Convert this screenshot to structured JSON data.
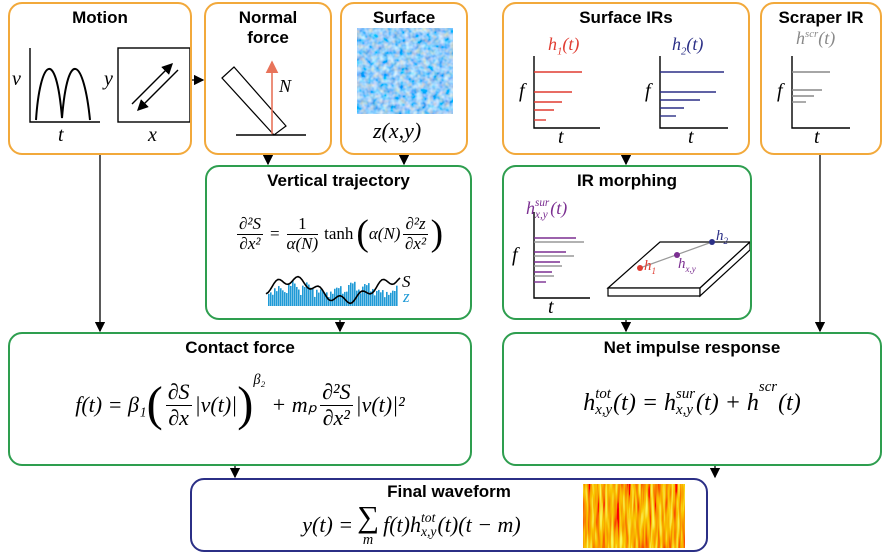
{
  "motion": {
    "title": "Motion",
    "v_label": "v",
    "t_label": "t",
    "y_label": "y",
    "x_label": "x"
  },
  "normal_force": {
    "title": "Normal force",
    "n_label": "N"
  },
  "surface": {
    "title": "Surface",
    "label": "z(x,y)"
  },
  "surface_irs": {
    "title": "Surface IRs",
    "h1": {
      "base": "h",
      "sub": "1",
      "arg": "(t)"
    },
    "h2": {
      "base": "h",
      "sub": "2",
      "arg": "(t)"
    },
    "f_label": "f",
    "t_label": "t"
  },
  "scraper_ir": {
    "title": "Scraper IR",
    "h": {
      "base": "h",
      "sup": "scr",
      "arg": "(t)"
    },
    "f_label": "f",
    "t_label": "t"
  },
  "vertical_trajectory": {
    "title": "Vertical trajectory",
    "equation": {
      "lhs_num": "∂²S",
      "lhs_den": "∂x²",
      "eq": "=",
      "num": "1",
      "den": "α(N)",
      "fn": "tanh",
      "open": "(",
      "arg": "α(N)",
      "arg_num": "∂²z",
      "arg_den": "∂x²",
      "close": ")"
    },
    "s_label": "S",
    "z_label": "z"
  },
  "ir_morphing": {
    "title": "IR morphing",
    "h": {
      "base": "h",
      "sup": "sur",
      "sub": "x,y",
      "arg": "(t)"
    },
    "f_label": "f",
    "t_label": "t",
    "p1": {
      "base": "h",
      "sub": "1"
    },
    "p2": {
      "base": "h",
      "sub": "2"
    },
    "pxy": {
      "base": "h",
      "sub": "x,y"
    }
  },
  "contact_force": {
    "title": "Contact force",
    "equation": {
      "lhs": "f(t) = β₁",
      "open": "(",
      "num": "∂S",
      "den": "∂x",
      "v": "|v(t)|",
      "close": ")",
      "exp": "β₂",
      "plus": "+ mₚ",
      "num2": "∂²S",
      "den2": "∂x²",
      "v2": "|v(t)|²"
    }
  },
  "net_impulse_response": {
    "title": "Net impulse response",
    "equation": {
      "h1": "h",
      "sup1": "tot",
      "sub1": "x,y",
      "mid1": "(t) = h",
      "sup2": "sur",
      "sub2": "x,y",
      "mid2": "(t) + h",
      "sup3": "scr",
      "end": "(t)"
    }
  },
  "final_waveform": {
    "title": "Final waveform",
    "equation": {
      "lhs": "y(t) =",
      "sum": "∑",
      "sum_sub": "m",
      "f": "f(t)h",
      "sup": "tot",
      "sub": "x,y",
      "end": "(t)(t − m)"
    }
  }
}
